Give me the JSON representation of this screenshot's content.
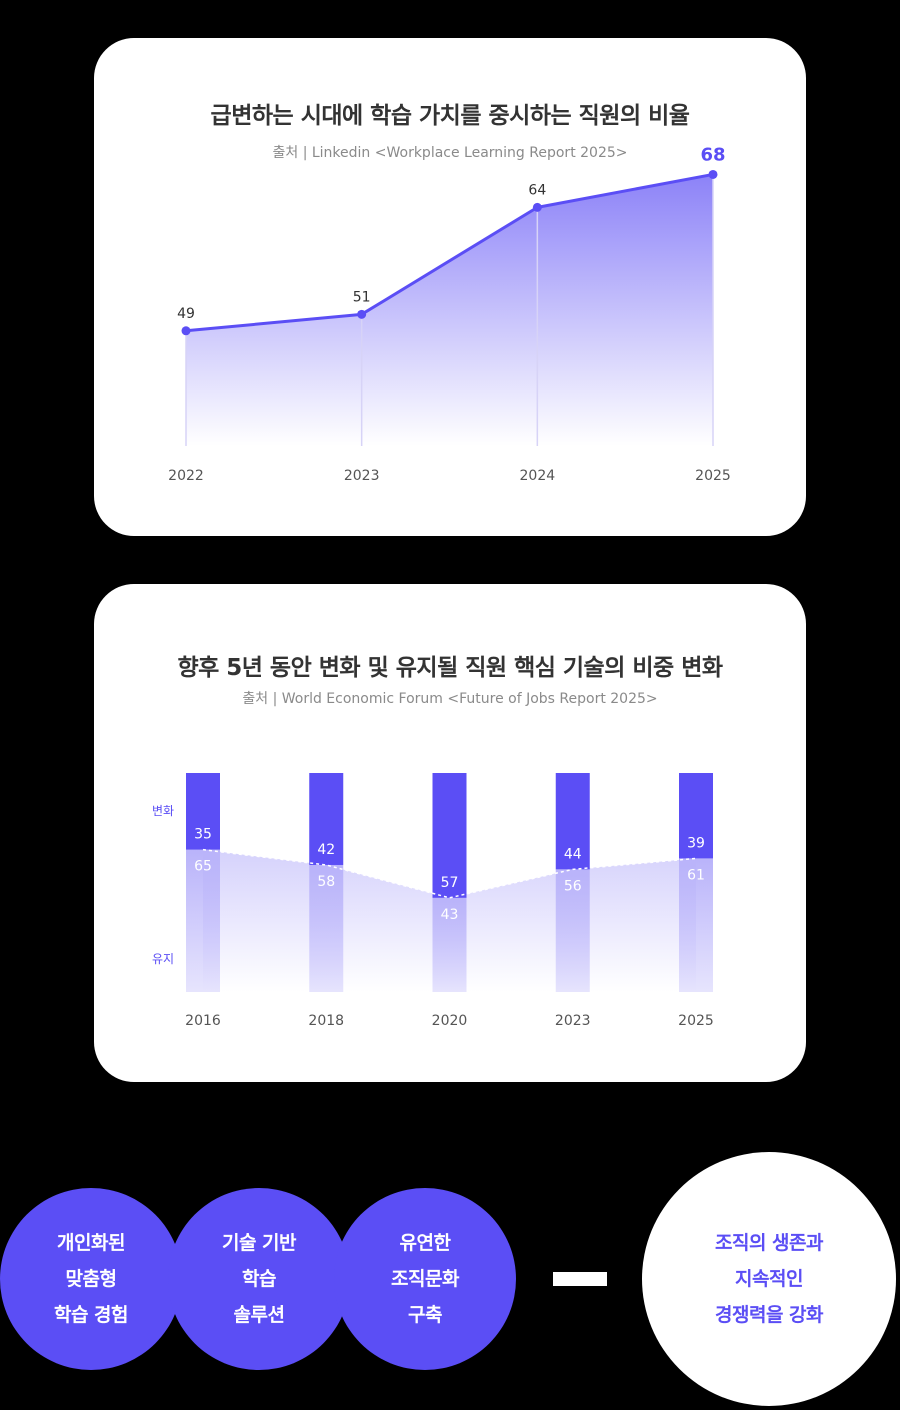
{
  "chart_data": [
    {
      "type": "line",
      "title": "급변하는 시대에 학습 가치를 중시하는 직원의 비율",
      "source": "출처  |  Linkedin <Workplace Learning Report 2025>",
      "x": [
        "2022",
        "2023",
        "2024",
        "2025"
      ],
      "values": [
        49,
        51,
        64,
        68
      ],
      "ylim": [
        35,
        70
      ],
      "highlight_last": true,
      "grid": false,
      "colors": {
        "line": "#5b4ef5",
        "area_top": "#7f74f7",
        "label": "#333333",
        "highlight": "#5b4ef5"
      }
    },
    {
      "type": "bar",
      "stacked": true,
      "title": "향후 5년 동안 변화 및 유지될 직원 핵심 기술의 비중 변화",
      "source": "출처  |  World Economic Forum <Future of Jobs Report 2025>",
      "categories": [
        "2016",
        "2018",
        "2020",
        "2023",
        "2025"
      ],
      "series": [
        {
          "name": "변화",
          "values": [
            35,
            42,
            57,
            44,
            39
          ]
        },
        {
          "name": "유지",
          "values": [
            65,
            58,
            43,
            56,
            61
          ]
        }
      ],
      "ylim": [
        0,
        100
      ],
      "grid": false,
      "colors": {
        "change": "#5b4ef5",
        "keep": "#b9b3fa"
      }
    }
  ],
  "bottom": {
    "circles": [
      {
        "lines": [
          "개인화된",
          "맞춤형",
          "학습 경험"
        ]
      },
      {
        "lines": [
          "기술 기반",
          "학습",
          "솔루션"
        ]
      },
      {
        "lines": [
          "유연한",
          "조직문화",
          "구축"
        ]
      }
    ],
    "result": {
      "lines": [
        "조직의 생존과",
        "지속적인",
        "경쟁력을 강화"
      ]
    },
    "colors": {
      "circle": "#5b4ef5",
      "result_text": "#5b4ef5"
    }
  }
}
